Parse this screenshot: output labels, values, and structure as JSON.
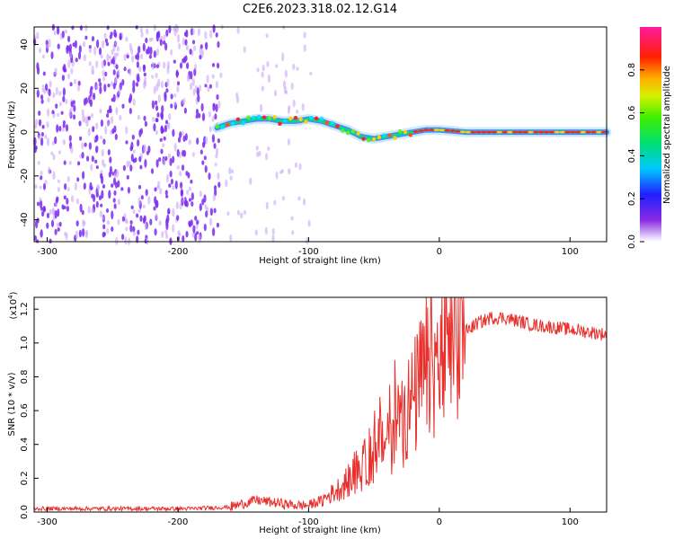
{
  "title": "C2E6.2023.318.02.12.G14",
  "colors": {
    "snr_line": "#e8302c",
    "spectrum_dot": "#7b2cf0",
    "spectrum_faint": "#c9a6f7",
    "axis": "#000000"
  },
  "chart_data": [
    {
      "type": "heatmap",
      "title": "",
      "xlabel": "Height of straight line (km)",
      "ylabel": "Frequency (Hz)",
      "xlim": [
        -310,
        128
      ],
      "ylim": [
        -50,
        48
      ],
      "x_ticks": [
        -300,
        -200,
        -100,
        0,
        100
      ],
      "y_ticks": [
        -40,
        -20,
        0,
        20,
        40
      ],
      "grid": false,
      "colorbar": {
        "label": "Normalized spectral amplitude",
        "range": [
          0,
          1
        ],
        "ticks": [
          "0.0",
          "0.2",
          "0.4",
          "0.6",
          "0.8"
        ],
        "colormap": "rainbow (violet-blue-cyan-green-yellow-red-magenta)"
      },
      "ridge": {
        "description": "high-amplitude Doppler trace",
        "x": [
          -170,
          -160,
          -150,
          -140,
          -130,
          -120,
          -110,
          -100,
          -90,
          -80,
          -70,
          -60,
          -50,
          -40,
          -30,
          -20,
          -10,
          0,
          20,
          60,
          100,
          128
        ],
        "y": [
          2,
          4,
          5,
          6,
          6,
          5,
          5,
          6,
          5,
          3,
          1,
          -2,
          -3,
          -2,
          -1,
          0,
          1,
          1,
          0,
          0,
          0,
          0
        ]
      },
      "noise_region": {
        "x_from": -310,
        "x_to": -95,
        "description": "broadband low-amplitude noise"
      }
    },
    {
      "type": "line",
      "title": "",
      "xlabel": "Height of straight line (km)",
      "ylabel": "SNR (10 * v/v)",
      "y_scale_note": "(x10^4)",
      "xlim": [
        -310,
        128
      ],
      "ylim": [
        0,
        1.27
      ],
      "x_ticks": [
        -300,
        -200,
        -100,
        0,
        100
      ],
      "y_ticks": [
        "0.0",
        "0.2",
        "0.4",
        "0.6",
        "0.8",
        "1.0",
        "1.2"
      ],
      "grid": false,
      "series": [
        {
          "x": [
            -310,
            -280,
            -250,
            -220,
            -190,
            -160,
            -150,
            -140,
            -130,
            -120,
            -110,
            -100,
            -90,
            -80,
            -70,
            -60,
            -50,
            -40,
            -30,
            -20,
            -15,
            -10,
            0,
            10,
            20,
            30,
            40,
            50,
            60,
            70,
            80,
            90,
            100,
            110,
            120,
            128
          ],
          "y": [
            0.02,
            0.02,
            0.02,
            0.02,
            0.02,
            0.03,
            0.05,
            0.07,
            0.06,
            0.05,
            0.04,
            0.04,
            0.07,
            0.12,
            0.18,
            0.25,
            0.35,
            0.45,
            0.55,
            0.65,
            0.75,
            0.82,
            0.88,
            0.97,
            1.07,
            1.12,
            1.15,
            1.15,
            1.13,
            1.11,
            1.1,
            1.09,
            1.08,
            1.07,
            1.06,
            1.05
          ]
        }
      ]
    }
  ]
}
